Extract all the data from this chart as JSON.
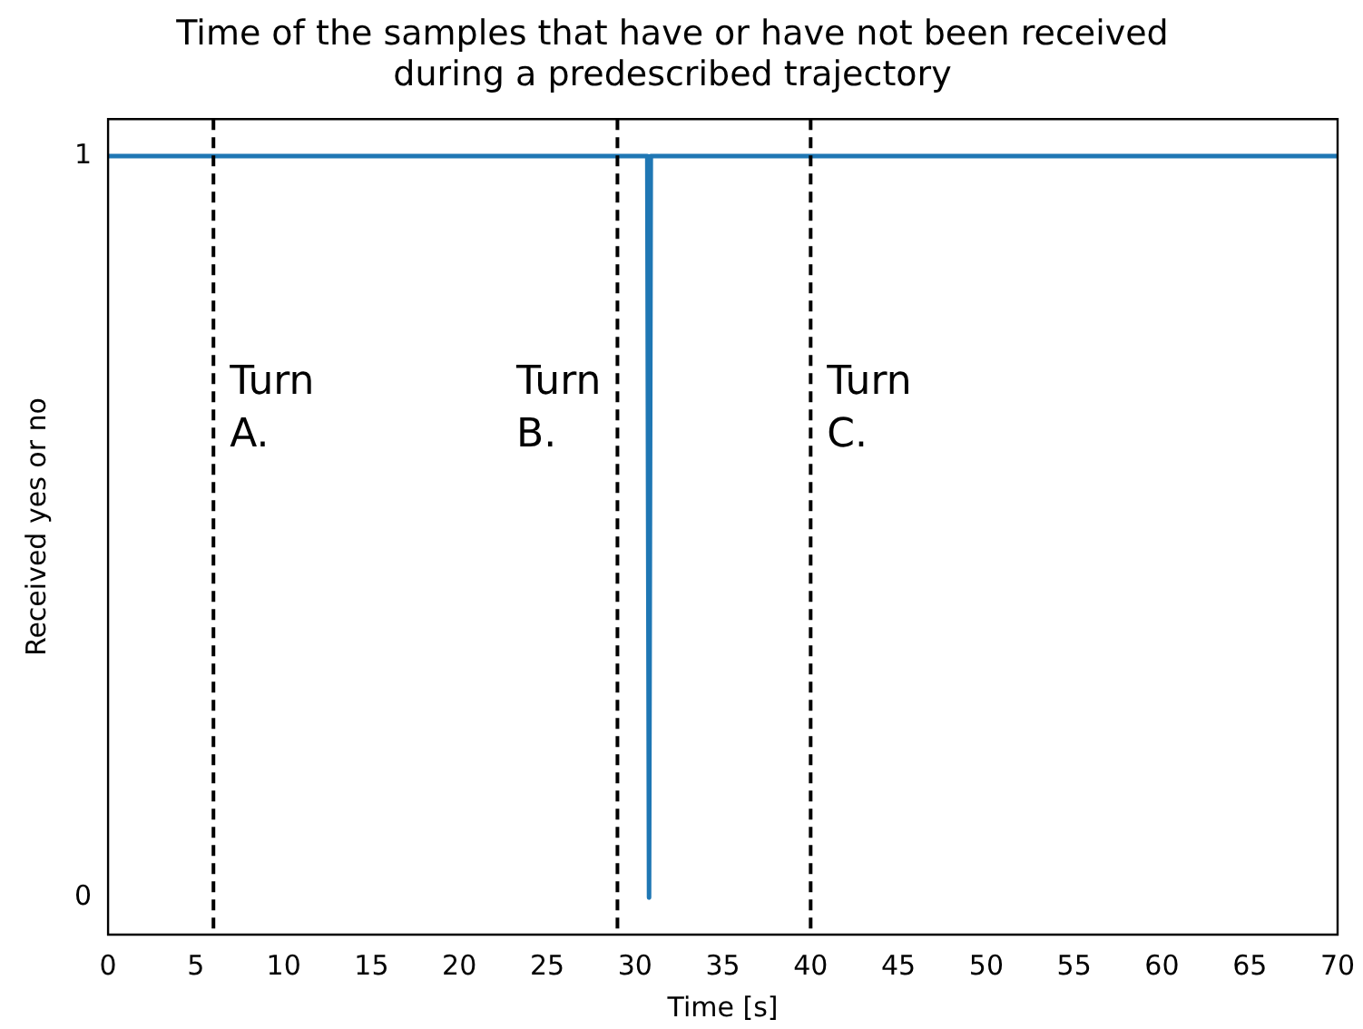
{
  "chart_data": {
    "type": "line",
    "title": "Time of the samples that have or have not been received\nduring a predescribed trajectory",
    "xlabel": "Time [s]",
    "ylabel": "Received yes or no",
    "series": [
      {
        "color": "#1f77b4",
        "x": [
          0,
          30.7,
          30.8,
          30.9,
          70
        ],
        "values": [
          1,
          1,
          0,
          1,
          1
        ]
      }
    ],
    "xlim": [
      0,
      70
    ],
    "xticks": [
      0,
      5,
      10,
      15,
      20,
      25,
      30,
      35,
      40,
      45,
      50,
      55,
      60,
      65,
      70
    ],
    "ylim": [
      -0.05,
      1.05
    ],
    "yticks": [
      0,
      1
    ],
    "grid": false,
    "legend": false,
    "marker": "none",
    "line_style": "solid",
    "ref_lines": [
      {
        "axis": "x",
        "value": 6,
        "label": "Turn\nA.",
        "color": "#000000",
        "line_style": "dashed"
      },
      {
        "axis": "x",
        "value": 29,
        "label": "Turn\nB.",
        "color": "#000000",
        "line_style": "dashed"
      },
      {
        "axis": "x",
        "value": 40,
        "label": "Turn\nC.",
        "color": "#000000",
        "line_style": "dashed"
      }
    ]
  }
}
